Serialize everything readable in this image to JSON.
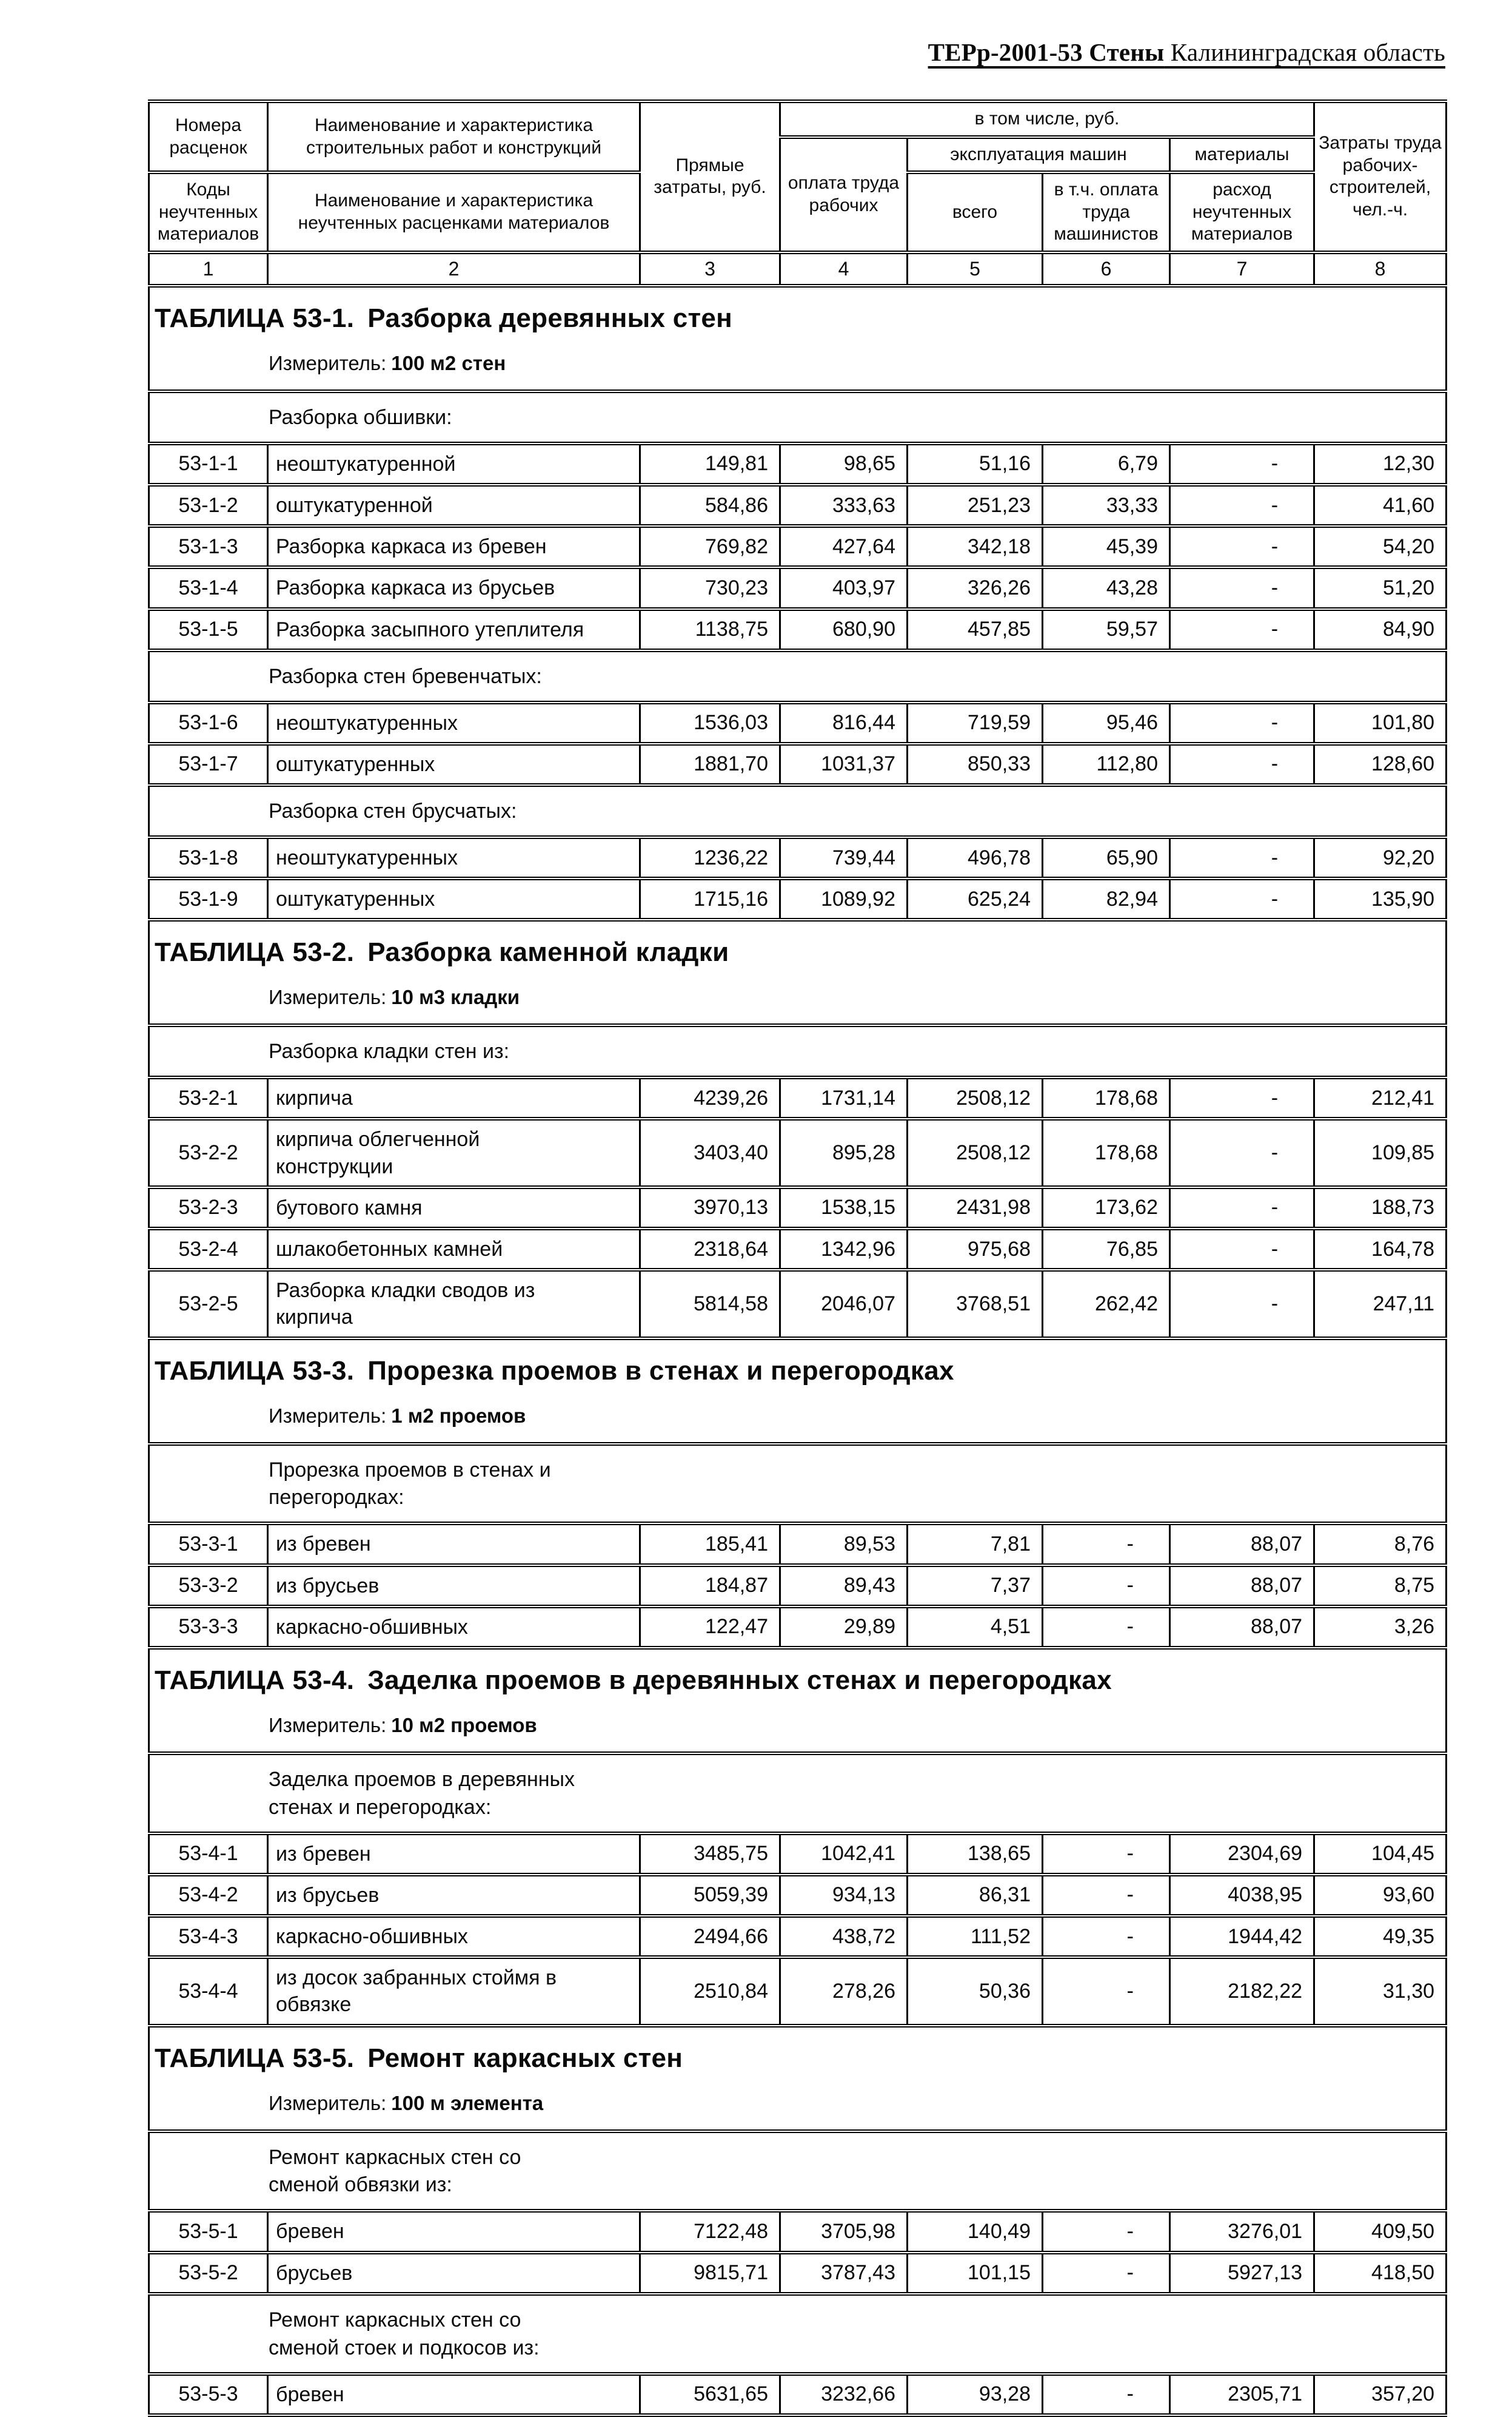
{
  "page_title": {
    "code": "ТЕРр-2001-53 Стены",
    "region": " Калининградская область"
  },
  "table_header": {
    "col1_top": "Номера расценок",
    "col1_bottom": "Коды неучтенных материалов",
    "col2_top": "Наименование и характеристика строительных работ и конструкций",
    "col2_bottom": "Наименование и характеристика неучтенных расценками материалов",
    "col3": "Прямые затраты, руб.",
    "group_incl": "в том числе, руб.",
    "col4": "оплата труда рабочих",
    "group_machines": "эксплуатация машин",
    "col5": "всего",
    "col6": "в т.ч. оплата труда машинистов",
    "group_materials": "материалы",
    "col7": "расход неучтенных материалов",
    "col8": "Затраты труда рабочих-строителей, чел.-ч.",
    "numbers": [
      "1",
      "2",
      "3",
      "4",
      "5",
      "6",
      "7",
      "8"
    ]
  },
  "sections": [
    {
      "number_label": "ТАБЛИЦА  53-1.",
      "title": "Разборка деревянных стен",
      "measure_label": "Измеритель:",
      "measure_value": "100 м2 стен",
      "groups": [
        {
          "label": "Разборка обшивки:",
          "rows": [
            {
              "code": "53-1-1",
              "name": "неоштукатуренной",
              "values": [
                "149,81",
                "98,65",
                "51,16",
                "6,79",
                "-",
                "12,30"
              ]
            },
            {
              "code": "53-1-2",
              "name": "оштукатуренной",
              "values": [
                "584,86",
                "333,63",
                "251,23",
                "33,33",
                "-",
                "41,60"
              ]
            },
            {
              "code": "53-1-3",
              "name": "Разборка каркаса из бревен",
              "values": [
                "769,82",
                "427,64",
                "342,18",
                "45,39",
                "-",
                "54,20"
              ]
            },
            {
              "code": "53-1-4",
              "name": "Разборка каркаса из брусьев",
              "values": [
                "730,23",
                "403,97",
                "326,26",
                "43,28",
                "-",
                "51,20"
              ]
            },
            {
              "code": "53-1-5",
              "name": "Разборка засыпного утеплителя",
              "values": [
                "1138,75",
                "680,90",
                "457,85",
                "59,57",
                "-",
                "84,90"
              ]
            }
          ]
        },
        {
          "label": "Разборка стен бревенчатых:",
          "rows": [
            {
              "code": "53-1-6",
              "name": "неоштукатуренных",
              "values": [
                "1536,03",
                "816,44",
                "719,59",
                "95,46",
                "-",
                "101,80"
              ]
            },
            {
              "code": "53-1-7",
              "name": "оштукатуренных",
              "values": [
                "1881,70",
                "1031,37",
                "850,33",
                "112,80",
                "-",
                "128,60"
              ]
            }
          ]
        },
        {
          "label": "Разборка стен брусчатых:",
          "rows": [
            {
              "code": "53-1-8",
              "name": "неоштукатуренных",
              "values": [
                "1236,22",
                "739,44",
                "496,78",
                "65,90",
                "-",
                "92,20"
              ]
            },
            {
              "code": "53-1-9",
              "name": "оштукатуренных",
              "values": [
                "1715,16",
                "1089,92",
                "625,24",
                "82,94",
                "-",
                "135,90"
              ]
            }
          ]
        }
      ]
    },
    {
      "number_label": "ТАБЛИЦА  53-2.",
      "title": "Разборка каменной кладки",
      "measure_label": "Измеритель:",
      "measure_value": "10 м3 кладки",
      "groups": [
        {
          "label": "Разборка кладки стен из:",
          "rows": [
            {
              "code": "53-2-1",
              "name": "кирпича",
              "values": [
                "4239,26",
                "1731,14",
                "2508,12",
                "178,68",
                "-",
                "212,41"
              ]
            },
            {
              "code": "53-2-2",
              "name": "кирпича облегченной\nконструкции",
              "values": [
                "3403,40",
                "895,28",
                "2508,12",
                "178,68",
                "-",
                "109,85"
              ]
            },
            {
              "code": "53-2-3",
              "name": "бутового камня",
              "values": [
                "3970,13",
                "1538,15",
                "2431,98",
                "173,62",
                "-",
                "188,73"
              ]
            },
            {
              "code": "53-2-4",
              "name": "шлакобетонных камней",
              "values": [
                "2318,64",
                "1342,96",
                "975,68",
                "76,85",
                "-",
                "164,78"
              ]
            },
            {
              "code": "53-2-5",
              "name": "Разборка кладки сводов из\nкирпича",
              "values": [
                "5814,58",
                "2046,07",
                "3768,51",
                "262,42",
                "-",
                "247,11"
              ]
            }
          ]
        }
      ]
    },
    {
      "number_label": "ТАБЛИЦА  53-3.",
      "title": "Прорезка проемов в стенах и перегородках",
      "measure_label": "Измеритель:",
      "measure_value": "1 м2 проемов",
      "groups": [
        {
          "label": "Прорезка проемов в стенах и\nперегородках:",
          "rows": [
            {
              "code": "53-3-1",
              "name": "из бревен",
              "values": [
                "185,41",
                "89,53",
                "7,81",
                "-",
                "88,07",
                "8,76"
              ]
            },
            {
              "code": "53-3-2",
              "name": "из брусьев",
              "values": [
                "184,87",
                "89,43",
                "7,37",
                "-",
                "88,07",
                "8,75"
              ]
            },
            {
              "code": "53-3-3",
              "name": "каркасно-обшивных",
              "values": [
                "122,47",
                "29,89",
                "4,51",
                "-",
                "88,07",
                "3,26"
              ]
            }
          ]
        }
      ]
    },
    {
      "number_label": "ТАБЛИЦА  53-4.",
      "title": "Заделка проемов в деревянных стенах и перегородках",
      "measure_label": "Измеритель:",
      "measure_value": "10 м2 проемов",
      "groups": [
        {
          "label": "Заделка проемов в деревянных\nстенах и перегородках:",
          "rows": [
            {
              "code": "53-4-1",
              "name": "из бревен",
              "values": [
                "3485,75",
                "1042,41",
                "138,65",
                "-",
                "2304,69",
                "104,45"
              ]
            },
            {
              "code": "53-4-2",
              "name": "из брусьев",
              "values": [
                "5059,39",
                "934,13",
                "86,31",
                "-",
                "4038,95",
                "93,60"
              ]
            },
            {
              "code": "53-4-3",
              "name": "каркасно-обшивных",
              "values": [
                "2494,66",
                "438,72",
                "111,52",
                "-",
                "1944,42",
                "49,35"
              ]
            },
            {
              "code": "53-4-4",
              "name": "из досок забранных стоймя в\nобвязке",
              "values": [
                "2510,84",
                "278,26",
                "50,36",
                "-",
                "2182,22",
                "31,30"
              ]
            }
          ]
        }
      ]
    },
    {
      "number_label": "ТАБЛИЦА  53-5.",
      "title": "Ремонт каркасных стен",
      "measure_label": "Измеритель:",
      "measure_value": "100 м элемента",
      "groups": [
        {
          "label": "Ремонт каркасных стен со\nсменой обвязки из:",
          "rows": [
            {
              "code": "53-5-1",
              "name": "бревен",
              "values": [
                "7122,48",
                "3705,98",
                "140,49",
                "-",
                "3276,01",
                "409,50"
              ]
            },
            {
              "code": "53-5-2",
              "name": "брусьев",
              "values": [
                "9815,71",
                "3787,43",
                "101,15",
                "-",
                "5927,13",
                "418,50"
              ]
            }
          ]
        },
        {
          "label": "Ремонт каркасных стен со\nсменой стоек и подкосов из:",
          "rows": [
            {
              "code": "53-5-3",
              "name": "бревен",
              "values": [
                "5631,65",
                "3232,66",
                "93,28",
                "-",
                "2305,71",
                "357,20"
              ]
            }
          ]
        }
      ]
    }
  ]
}
